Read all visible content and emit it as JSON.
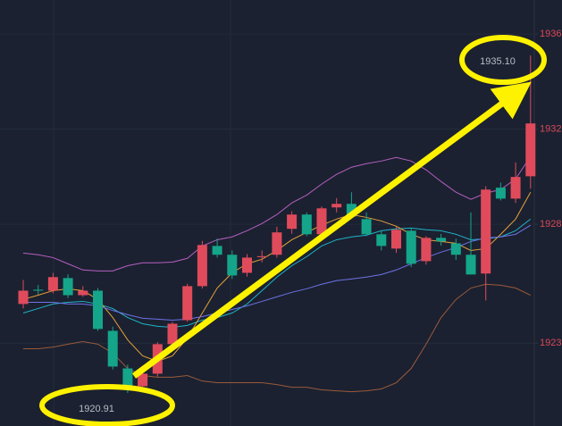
{
  "chart_data": {
    "type": "candlestick",
    "ylim": [
      1919.52,
      1937.43
    ],
    "yticks": [
      1936,
      1932,
      1928,
      1923
    ],
    "grid": true,
    "up_color": "#e04b5c",
    "down_color": "#15a58a",
    "open": [
      1924.65,
      1925.25,
      1925.21,
      1925.74,
      1925.02,
      1925.21,
      1923.52,
      1921.94,
      1921.19,
      1921.72,
      1922.96,
      1923.97,
      1925.4,
      1927.09,
      1926.72,
      1925.96,
      1926.62,
      1926.72,
      1927.81,
      1928.41,
      1927.58,
      1928.71,
      1928.86,
      1928.22,
      1927.58,
      1926.98,
      1927.73,
      1926.45,
      1927.43,
      1927.2,
      1926.72,
      1925.93,
      1929.54,
      1929.08,
      1930.02
    ],
    "high": [
      1925.66,
      1925.45,
      1925.96,
      1925.9,
      1925.4,
      1925.32,
      1923.7,
      1922.1,
      1921.85,
      1923.05,
      1923.9,
      1925.5,
      1927.3,
      1927.4,
      1926.9,
      1926.75,
      1926.9,
      1927.9,
      1928.55,
      1928.5,
      1928.75,
      1929.1,
      1929.35,
      1928.5,
      1927.7,
      1927.9,
      1927.85,
      1927.5,
      1927.6,
      1927.4,
      1928.5,
      1929.6,
      1929.75,
      1930.6,
      1935.1
    ],
    "low": [
      1924.46,
      1925.05,
      1925.1,
      1924.9,
      1924.95,
      1923.52,
      1921.9,
      1920.91,
      1921.0,
      1921.6,
      1922.9,
      1923.9,
      1925.3,
      1926.6,
      1925.7,
      1925.8,
      1926.4,
      1926.6,
      1927.6,
      1927.5,
      1927.4,
      1928.5,
      1928.25,
      1927.5,
      1926.9,
      1926.8,
      1926.2,
      1926.3,
      1927.1,
      1926.5,
      1925.9,
      1924.8,
      1929.0,
      1928.9,
      1929.5
    ],
    "close": [
      1925.21,
      1925.21,
      1925.78,
      1925.02,
      1925.21,
      1923.6,
      1922.02,
      1921.08,
      1921.72,
      1922.96,
      1923.82,
      1925.4,
      1927.13,
      1926.72,
      1925.85,
      1926.6,
      1926.66,
      1927.66,
      1928.41,
      1927.58,
      1928.67,
      1928.86,
      1928.33,
      1927.58,
      1927.09,
      1927.77,
      1926.34,
      1927.43,
      1927.28,
      1926.72,
      1925.89,
      1929.46,
      1929.08,
      1929.99,
      1932.24
    ],
    "lines": [
      {
        "color": "#b65fc0",
        "values": [
          1926.79,
          1926.72,
          1926.6,
          1926.34,
          1926.08,
          1926.04,
          1926.04,
          1926.26,
          1926.38,
          1926.38,
          1926.41,
          1926.57,
          1927.09,
          1927.35,
          1927.47,
          1927.73,
          1928.03,
          1928.41,
          1928.9,
          1929.23,
          1929.69,
          1930.1,
          1930.4,
          1930.55,
          1930.66,
          1930.81,
          1930.66,
          1930.29,
          1929.8,
          1929.35,
          1929.05,
          1929.31,
          1929.46,
          1929.91,
          1930.85
        ]
      },
      {
        "color": "#9a5a3c",
        "values": [
          1922.77,
          1922.77,
          1922.84,
          1922.96,
          1923.07,
          1922.96,
          1922.58,
          1921.94,
          1921.64,
          1921.57,
          1921.57,
          1921.64,
          1921.41,
          1921.34,
          1921.34,
          1921.34,
          1921.34,
          1921.26,
          1921.15,
          1921.15,
          1921.04,
          1921.0,
          1920.96,
          1921.0,
          1921.08,
          1921.34,
          1921.94,
          1922.96,
          1924.08,
          1924.84,
          1925.32,
          1925.48,
          1925.44,
          1925.32,
          1925.02
        ]
      },
      {
        "color": "#1fb4c8",
        "values": [
          1924.27,
          1924.46,
          1924.65,
          1924.72,
          1924.76,
          1924.65,
          1924.46,
          1924.08,
          1923.82,
          1923.71,
          1923.67,
          1923.75,
          1923.97,
          1924.08,
          1924.27,
          1924.65,
          1925.21,
          1925.78,
          1926.26,
          1926.64,
          1927.09,
          1927.35,
          1927.47,
          1927.54,
          1927.73,
          1927.81,
          1927.84,
          1927.77,
          1927.73,
          1927.58,
          1927.35,
          1927.39,
          1927.47,
          1927.73,
          1928.22
        ]
      },
      {
        "color": "#e7a13a",
        "values": [
          1924.84,
          1925.02,
          1925.21,
          1925.29,
          1925.21,
          1924.84,
          1924.08,
          1923.14,
          1922.47,
          1922.24,
          1922.47,
          1923.22,
          1924.27,
          1925.32,
          1925.96,
          1926.34,
          1926.53,
          1926.9,
          1927.35,
          1927.66,
          1927.96,
          1928.22,
          1928.41,
          1928.29,
          1928.14,
          1927.92,
          1927.58,
          1927.35,
          1927.28,
          1927.2,
          1926.9,
          1926.98,
          1927.58,
          1928.22,
          1929.35
        ]
      },
      {
        "color": "#6d72e6",
        "values": [
          1924.72,
          1924.72,
          1924.72,
          1924.65,
          1924.65,
          1924.57,
          1924.38,
          1924.2,
          1924.05,
          1924.01,
          1923.97,
          1924.01,
          1924.12,
          1924.27,
          1924.42,
          1924.57,
          1924.76,
          1924.95,
          1925.14,
          1925.29,
          1925.48,
          1925.63,
          1925.7,
          1925.78,
          1925.89,
          1926.08,
          1926.34,
          1926.6,
          1926.83,
          1927.02,
          1927.28,
          1927.43,
          1927.47,
          1927.58,
          1927.96
        ]
      }
    ],
    "annotations": [
      "1935.10",
      "1920.91"
    ]
  }
}
